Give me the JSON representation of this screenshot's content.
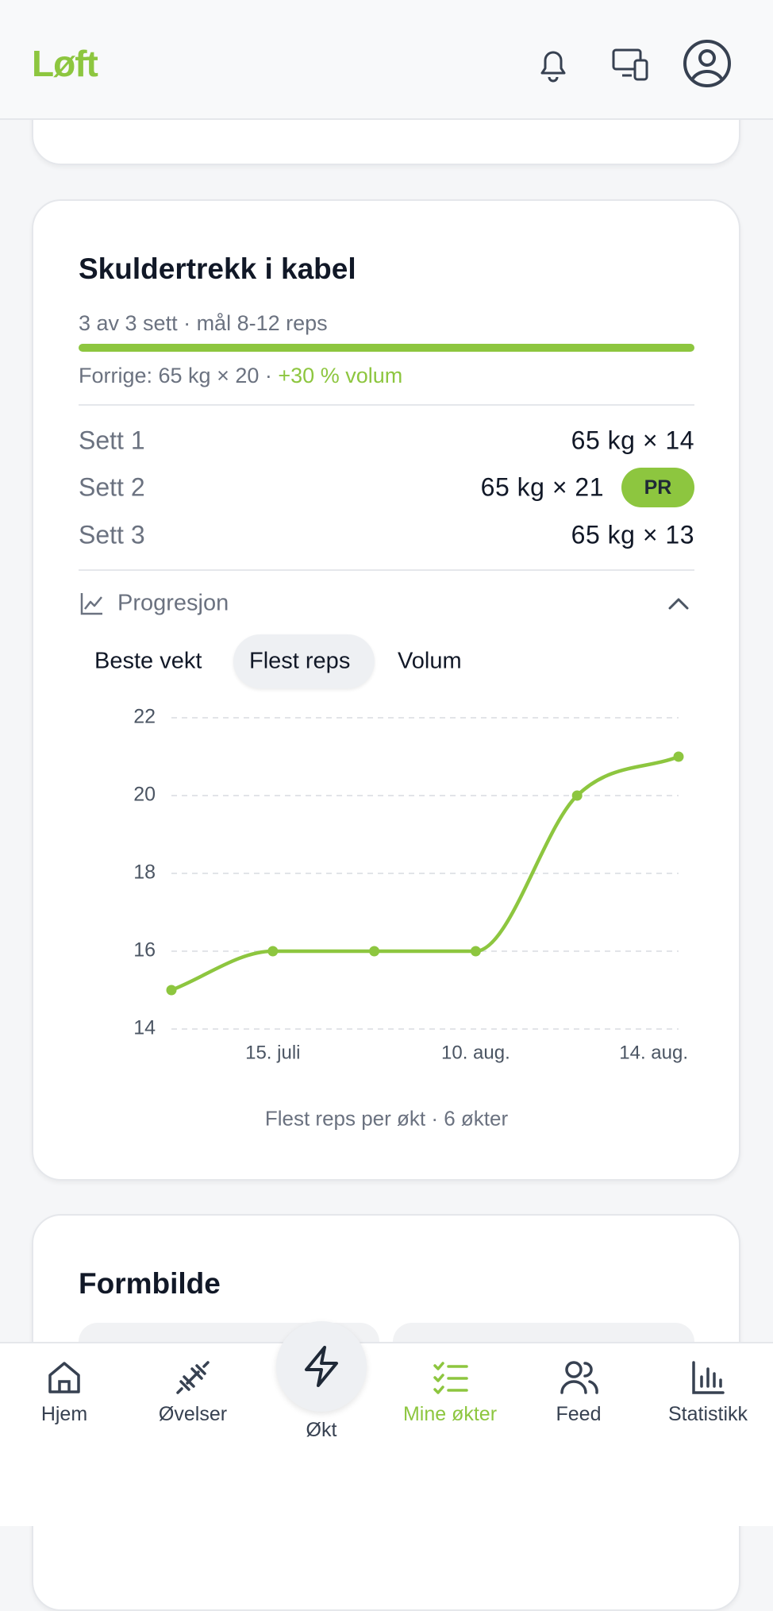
{
  "header": {
    "logo": "Løft"
  },
  "card": {
    "title": "Skuldertrekk i kabel",
    "subtitle": "3 av 3 sett · mål 8-12 reps",
    "previous": "Forrige: 65 kg × 20 ·",
    "change": "+30 % volum",
    "sets": [
      {
        "label": "Sett 1",
        "value": "65 kg × 14"
      },
      {
        "label": "Sett 2",
        "value": "65 kg × 21",
        "badge": "PR"
      },
      {
        "label": "Sett 3",
        "value": "65 kg × 13"
      }
    ],
    "progression": "Progresjon",
    "tabs": [
      "Beste vekt",
      "Flest reps",
      "Volum"
    ],
    "caption": "Flest reps per økt · 6 økter"
  },
  "chart_data": {
    "type": "line",
    "categories": [
      null,
      "15. juli",
      null,
      "10. aug.",
      null,
      "14. aug."
    ],
    "values": [
      15,
      16,
      16,
      16,
      20,
      21
    ],
    "color": "#8dc63f",
    "ylim": [
      14,
      22
    ],
    "yticks": [
      14,
      16,
      18,
      20,
      22
    ],
    "grid": true
  },
  "next_card": {
    "title": "Formbilde"
  },
  "nav": [
    "Hjem",
    "Øvelser",
    "Økt",
    "Mine økter",
    "Feed",
    "Statistikk"
  ]
}
